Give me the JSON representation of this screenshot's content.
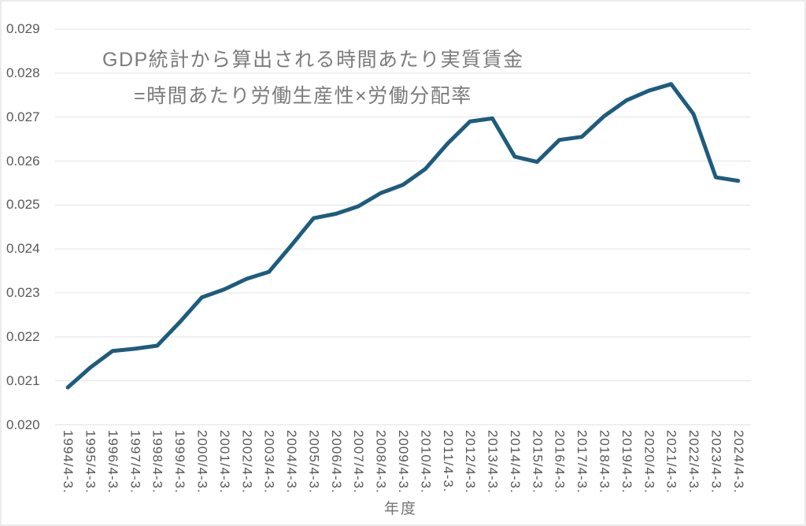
{
  "chart_data": {
    "type": "line",
    "title_line1": "GDP統計から算出される時間あたり実質賃金",
    "title_line2": "=時間あたり労働生産性×労働分配率",
    "xlabel": "年度",
    "categories": [
      "1994/4-3.",
      "1995/4-3.",
      "1996/4-3.",
      "1997/4-3.",
      "1998/4-3.",
      "1999/4-3.",
      "2000/4-3.",
      "2001/4-3.",
      "2002/4-3.",
      "2003/4-3.",
      "2004/4-3.",
      "2005/4-3.",
      "2006/4-3.",
      "2007/4-3.",
      "2008/4-3.",
      "2009/4-3.",
      "2010/4-3.",
      "2011/4-3.",
      "2012/4-3.",
      "2013/4-3.",
      "2014/4-3.",
      "2015/4-3.",
      "2016/4-3.",
      "2017/4-3.",
      "2018/4-3.",
      "2019/4-3.",
      "2020/4-3.",
      "2021/4-3.",
      "2022/4-3.",
      "2023/4-3.",
      "2024/4-3."
    ],
    "values": [
      0.02085,
      0.0213,
      0.02168,
      0.02173,
      0.0218,
      0.02233,
      0.0229,
      0.02308,
      0.02332,
      0.02348,
      0.02408,
      0.0247,
      0.0248,
      0.02497,
      0.02527,
      0.02546,
      0.02582,
      0.0264,
      0.0269,
      0.02697,
      0.0261,
      0.02598,
      0.02648,
      0.02655,
      0.02702,
      0.02738,
      0.0276,
      0.02775,
      0.02707,
      0.02563,
      0.02555
    ],
    "ylim": [
      0.02,
      0.029
    ],
    "y_ticks": [
      "0.029",
      "0.028",
      "0.027",
      "0.026",
      "0.025",
      "0.024",
      "0.023",
      "0.022",
      "0.021",
      "0.020"
    ],
    "grid": true,
    "legend": "none",
    "line_color": "#1e5c7e",
    "grid_color": "#e3e3e3",
    "tick_label_color": "#595959",
    "title_color": "#7b7b7b"
  }
}
